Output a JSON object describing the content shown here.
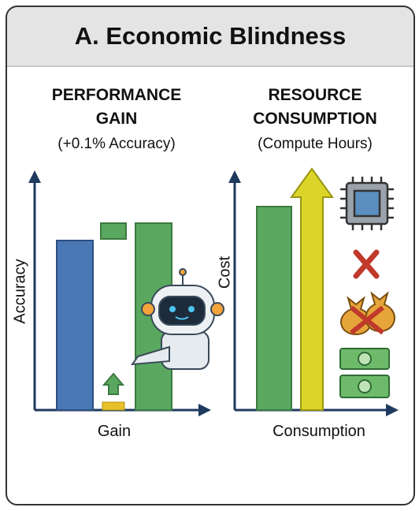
{
  "header": {
    "title": "A. Economic Blindness"
  },
  "panels": [
    {
      "title": "PERFORMANCE GAIN",
      "subtitle": "(+0.1% Accuracy)",
      "y_label": "Accuracy",
      "x_label": "Gain"
    },
    {
      "title": "RESOURCE CONSUMPTION",
      "subtitle": "(Compute Hours)",
      "y_label": "Cost",
      "x_label": "Consumption"
    }
  ]
}
